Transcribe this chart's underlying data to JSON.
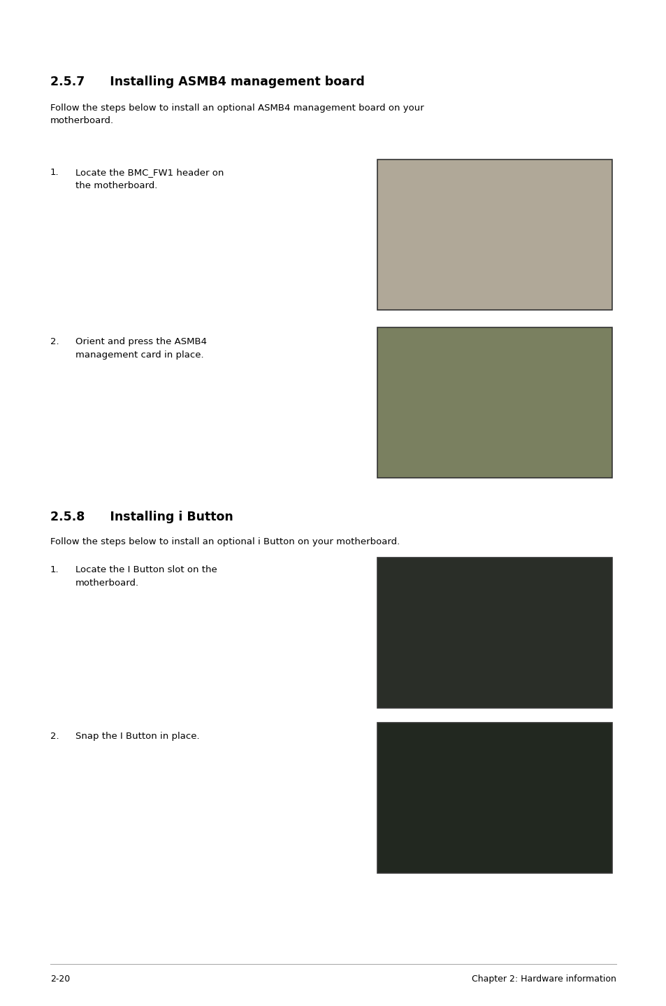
{
  "bg_color": "#ffffff",
  "section1_heading": "2.5.7      Installing ASMB4 management board",
  "section1_body": "Follow the steps below to install an optional ASMB4 management board on your\nmotherboard.",
  "section1_step1_num": "1.",
  "section1_step1_text": "Locate the BMC_FW1 header on\nthe motherboard.",
  "section1_step2_num": "2.",
  "section1_step2_text": "Orient and press the ASMB4\nmanagement card in place.",
  "section2_heading": "2.5.8      Installing i Button",
  "section2_body": "Follow the steps below to install an optional i Button on your motherboard.",
  "section2_step1_num": "1.",
  "section2_step1_text": "Locate the I Button slot on the\nmotherboard.",
  "section2_step2_num": "2.",
  "section2_step2_text": "Snap the I Button in place.",
  "footer_left": "2-20",
  "footer_right": "Chapter 2: Hardware information",
  "heading_fontsize": 12.5,
  "body_fontsize": 9.5,
  "step_fontsize": 9.5,
  "footer_fontsize": 9,
  "img1_color": "#b0a898",
  "img2_color": "#7a8060",
  "img3_color": "#2a2e28",
  "img4_color": "#222820",
  "image_border_color": "#333333"
}
